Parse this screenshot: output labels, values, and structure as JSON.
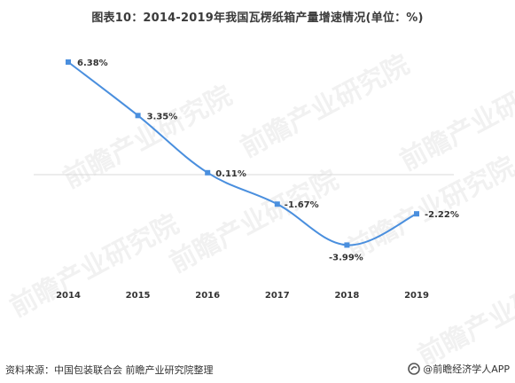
{
  "title": "图表10：2014-2019年我国瓦楞纸箱产量增速情况(单位：%)",
  "source": "资料来源：中国包装联合会 前瞻产业研究院整理",
  "brand": "@前瞻经济学人APP",
  "watermark": "前瞻产业研究院",
  "colors": {
    "line": "#4a8fde",
    "marker": "#4a8fde",
    "zero_line": "#d9d9d9",
    "text": "#333333"
  },
  "chart_data": {
    "type": "line",
    "categories": [
      "2014",
      "2015",
      "2016",
      "2017",
      "2018",
      "2019"
    ],
    "series": [
      {
        "values": [
          6.38,
          3.35,
          0.11,
          -1.67,
          -3.99,
          -2.22
        ]
      }
    ],
    "data_labels": [
      "6.38%",
      "3.35%",
      "0.11%",
      "-1.67%",
      "-3.99%",
      "-2.22%"
    ],
    "ylim": [
      -5.5,
      7.5
    ],
    "smooth": true,
    "markers": "square",
    "grid": false,
    "zero_line": true,
    "legend": "none"
  }
}
